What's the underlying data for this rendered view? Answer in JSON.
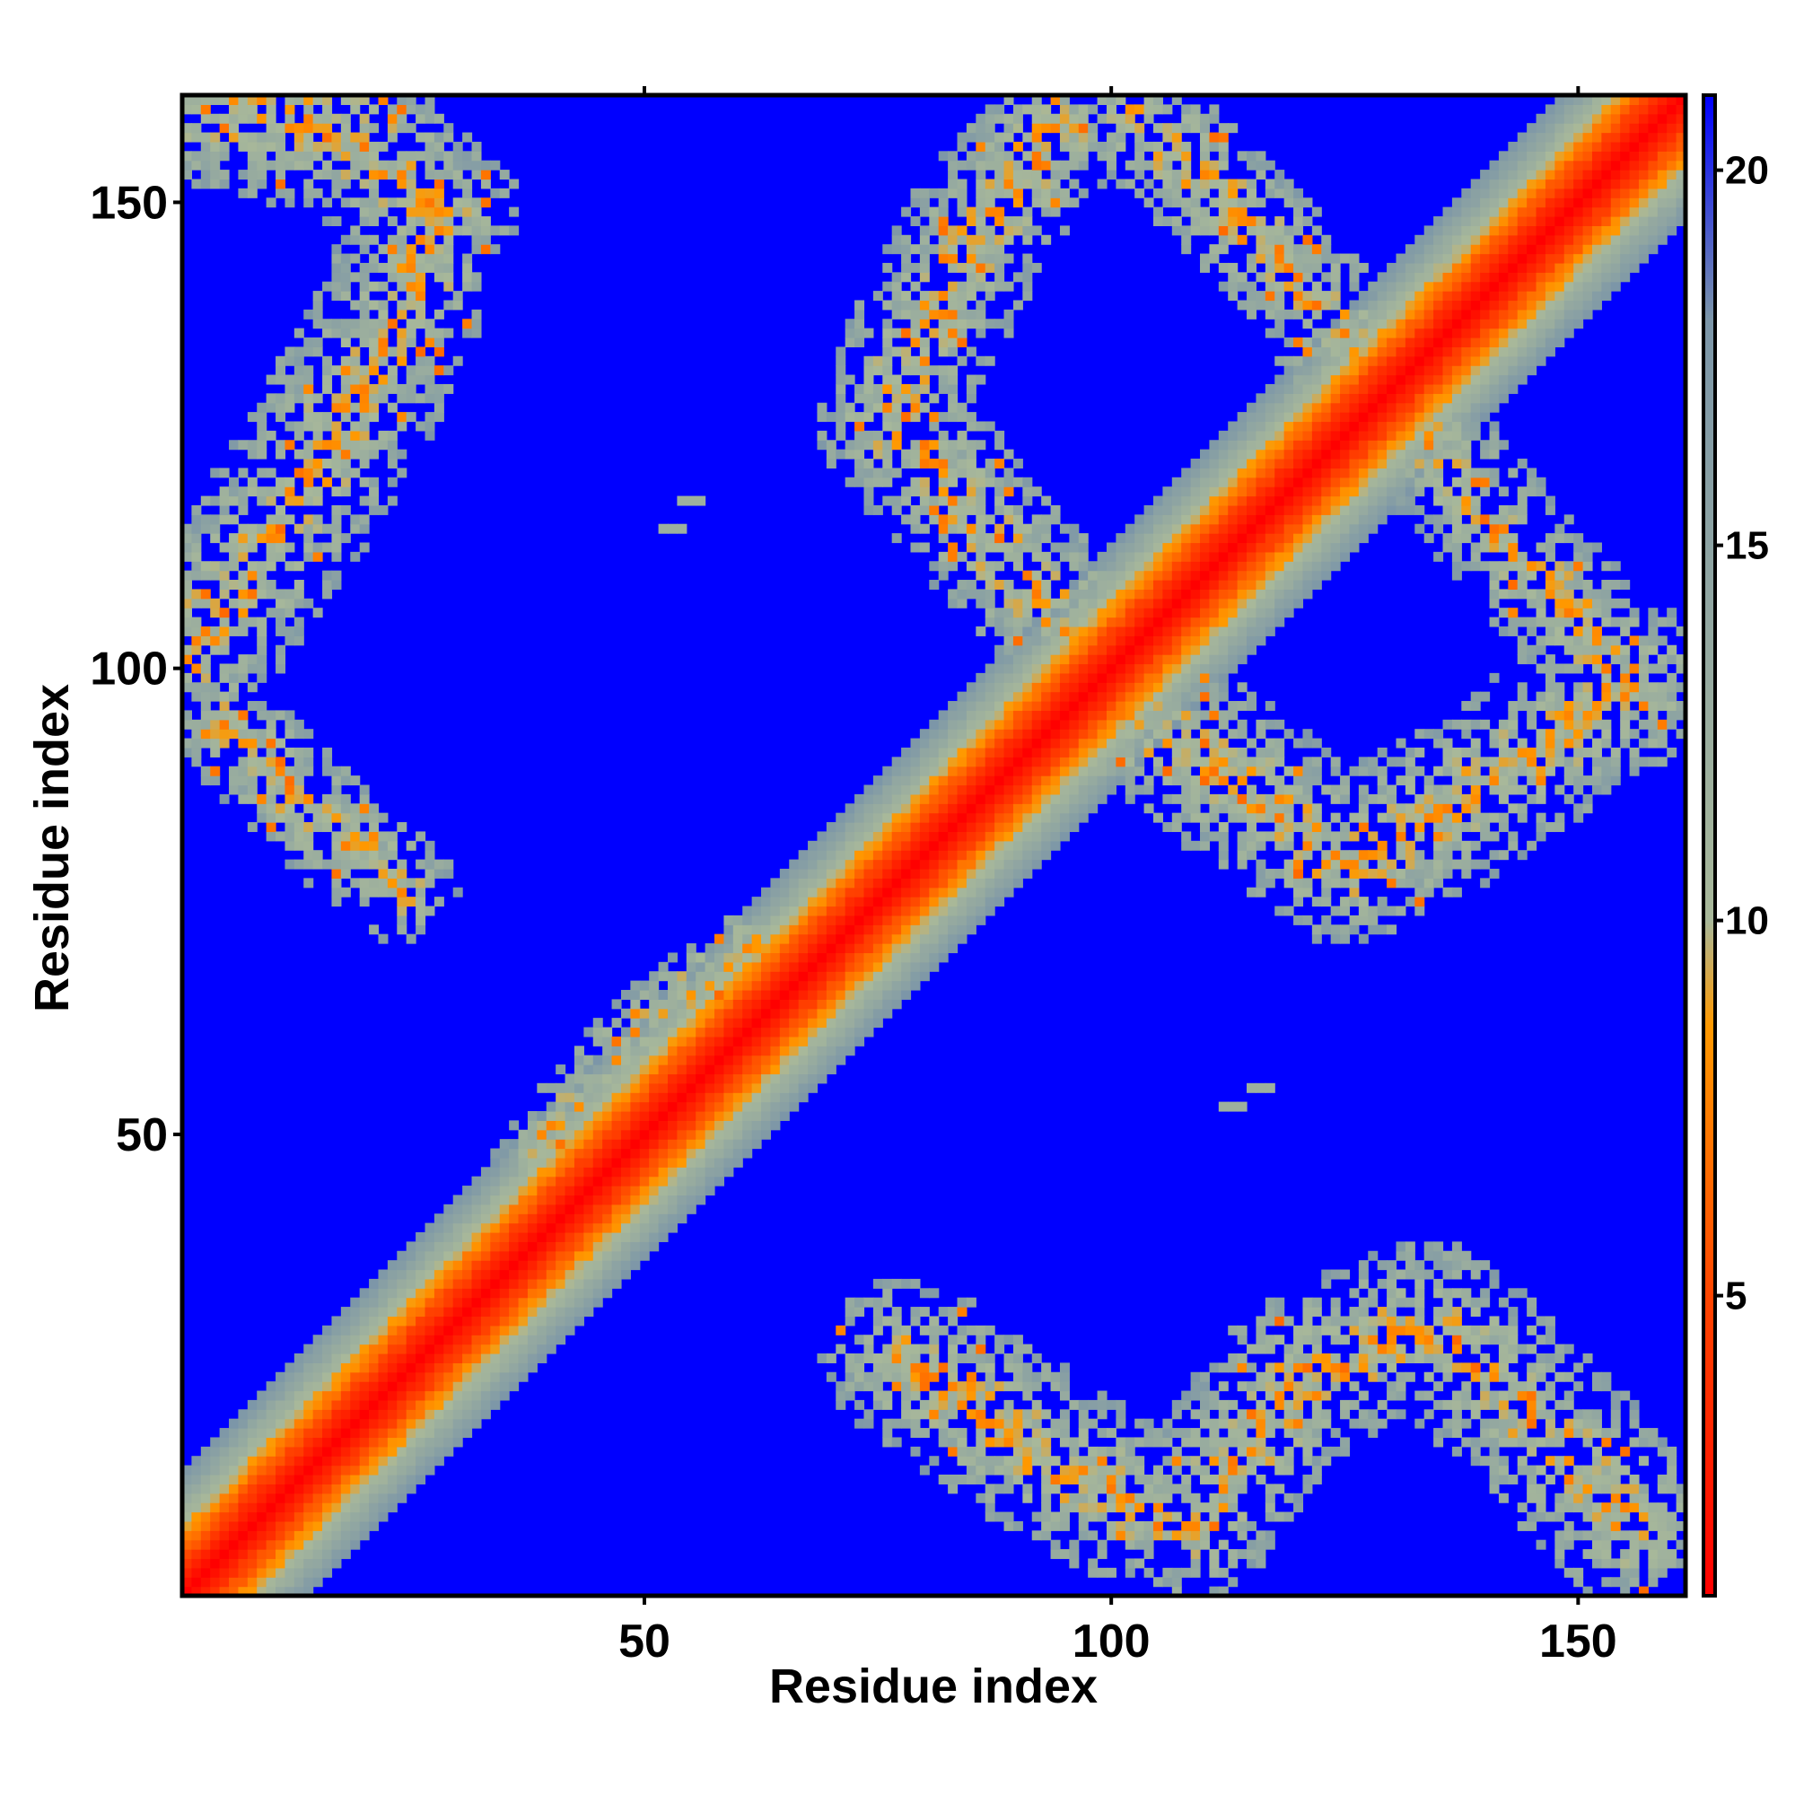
{
  "chart_data": {
    "type": "heatmap",
    "title": "",
    "xlabel": "Residue index",
    "ylabel": "Residue index",
    "xlim": [
      1,
      161
    ],
    "ylim": [
      1,
      161
    ],
    "n_residues": 161,
    "x_ticks": [
      50,
      100,
      150
    ],
    "y_ticks": [
      50,
      100,
      150
    ],
    "colorbar": {
      "range": [
        1,
        21
      ],
      "ticks": [
        5,
        10,
        15,
        20
      ],
      "colors": [
        "#ff0000",
        "#ff4500",
        "#ff9900",
        "#a8b89a",
        "#7c96a8",
        "#0000ff"
      ],
      "stops": [
        0,
        0.2,
        0.38,
        0.45,
        0.85,
        1
      ]
    },
    "background_value": 21,
    "diagonal": {
      "core_value": 1,
      "fade_to_value": 21,
      "width_residues": 13
    },
    "contact_regions": [
      {
        "name": "upper-left",
        "path": [
          [
            1,
            101
          ],
          [
            12,
            117
          ],
          [
            22,
            134
          ],
          [
            28,
            148
          ],
          [
            18,
            158
          ],
          [
            3,
            160
          ]
        ],
        "half_width": 9
      },
      {
        "name": "lower-left-arm",
        "path": [
          [
            5,
            94
          ],
          [
            14,
            85
          ],
          [
            24,
            76
          ]
        ],
        "half_width": 6
      },
      {
        "name": "upper-middle",
        "path": [
          [
            96,
            104
          ],
          [
            86,
            115
          ],
          [
            76,
            127
          ],
          [
            85,
            146
          ],
          [
            94,
            158
          ]
        ],
        "half_width": 8
      },
      {
        "name": "upper-right",
        "path": [
          [
            102,
            160
          ],
          [
            118,
            144
          ],
          [
            131,
            128
          ],
          [
            142,
            114
          ],
          [
            153,
            102
          ]
        ],
        "half_width": 7
      },
      {
        "name": "right-middle",
        "path": [
          [
            100,
            97
          ],
          [
            113,
            88
          ],
          [
            125,
            79
          ],
          [
            138,
            86
          ],
          [
            150,
            95
          ],
          [
            156,
            98
          ]
        ],
        "half_width": 9
      },
      {
        "name": "bottom-right",
        "path": [
          [
            78,
            26
          ],
          [
            95,
            14
          ],
          [
            108,
            8
          ],
          [
            120,
            24
          ],
          [
            134,
            30
          ],
          [
            145,
            20
          ],
          [
            156,
            8
          ]
        ],
        "half_width": 9
      },
      {
        "name": "near-diagonal-flare",
        "path": [
          [
            38,
            48
          ],
          [
            50,
            62
          ],
          [
            62,
            71
          ]
        ],
        "half_width": 4
      }
    ],
    "isolated_marks": [
      {
        "x": 55,
        "y": 118
      },
      {
        "x": 53,
        "y": 115
      },
      {
        "x": 113,
        "y": 53
      },
      {
        "x": 116,
        "y": 55
      }
    ]
  }
}
